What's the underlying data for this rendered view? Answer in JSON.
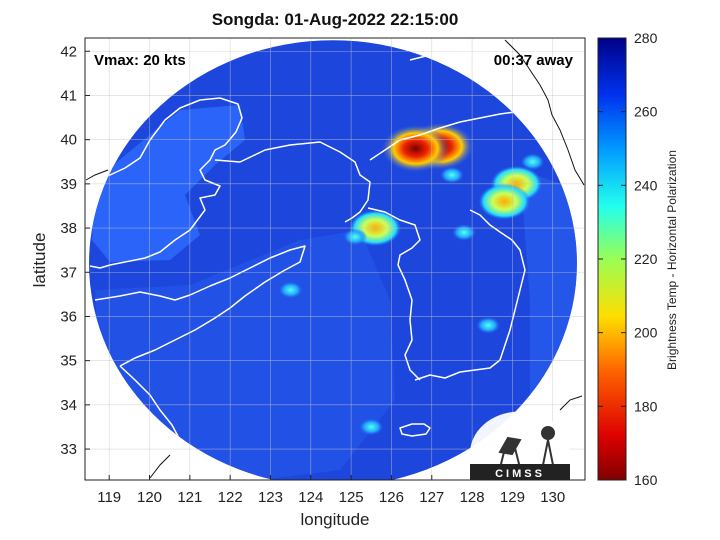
{
  "title": "Songda: 01-Aug-2022 22:15:00",
  "vmax_label": "Vmax: 20 kts",
  "time_away_label": "00:37 away",
  "logo_text": "CIMSS",
  "map": {
    "xlabel": "longitude",
    "ylabel": "latitude",
    "xlim": [
      118.4,
      130.8
    ],
    "ylim": [
      32.3,
      42.3
    ],
    "xticks": [
      119,
      120,
      121,
      122,
      123,
      124,
      125,
      126,
      127,
      128,
      129,
      130
    ],
    "yticks": [
      33,
      34,
      35,
      36,
      37,
      38,
      39,
      40,
      41,
      42
    ],
    "grid": true,
    "swath_center": [
      124.55,
      37.2
    ],
    "swath_radius_lon": 6.05,
    "swath_radius_lat": 5.05
  },
  "colorbar": {
    "label": "Brightness Temp - Horizontal Polarization",
    "min": 160,
    "max": 280,
    "ticks": [
      160,
      180,
      200,
      220,
      240,
      260,
      280
    ]
  },
  "colors": {
    "background_cold": "#1e44d8",
    "ocean_field": "#2b5ff0",
    "land_field": "#1a3cc8",
    "coastline": "#ffffff"
  },
  "features": [
    {
      "lon": 127.2,
      "lat": 39.85,
      "tb": 172
    },
    {
      "lon": 126.6,
      "lat": 39.8,
      "tb": 178
    },
    {
      "lon": 129.1,
      "lat": 39.0,
      "tb": 205
    },
    {
      "lon": 128.8,
      "lat": 38.6,
      "tb": 225
    },
    {
      "lon": 125.6,
      "lat": 38.0,
      "tb": 195
    },
    {
      "lon": 127.8,
      "lat": 37.9,
      "tb": 240
    },
    {
      "lon": 123.5,
      "lat": 36.6,
      "tb": 238
    },
    {
      "lon": 125.1,
      "lat": 37.8,
      "tb": 240
    },
    {
      "lon": 128.4,
      "lat": 35.8,
      "tb": 238
    },
    {
      "lon": 125.5,
      "lat": 33.5,
      "tb": 240
    },
    {
      "lon": 129.5,
      "lat": 39.5,
      "tb": 235
    },
    {
      "lon": 127.5,
      "lat": 39.2,
      "tb": 248
    }
  ]
}
